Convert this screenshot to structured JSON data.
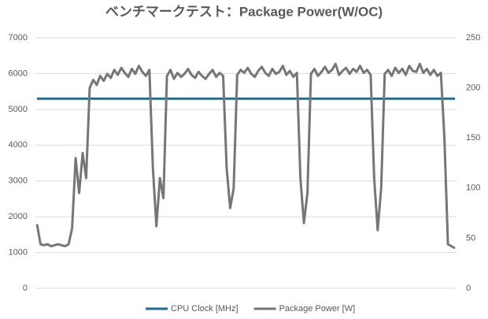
{
  "chart_data": {
    "type": "line",
    "title": "ベンチマークテスト：Package Power(W/OC)",
    "ylim": [
      0,
      7000
    ],
    "yticks": [
      0,
      1000,
      2000,
      3000,
      4000,
      5000,
      6000,
      7000
    ],
    "y2lim": [
      0,
      250
    ],
    "y2ticks": [
      0,
      50,
      100,
      150,
      200,
      250
    ],
    "grid": true,
    "legend": "bottom",
    "series": [
      {
        "name": "CPU Clock [MHz]",
        "color": "#1b6f8f",
        "values": [
          5300,
          5300,
          5300,
          5300,
          5300,
          5300,
          5300,
          5300,
          5300,
          5300,
          5300,
          5300,
          5300,
          5300,
          5300,
          5300,
          5300,
          5300,
          5300,
          5300,
          5300,
          5300,
          5300,
          5300,
          5300,
          5300,
          5300,
          5300,
          5300,
          5300,
          5300,
          5300,
          5300,
          5300,
          5300,
          5300,
          5300,
          5300,
          5300,
          5300,
          5300,
          5300,
          5300,
          5300,
          5300,
          5300,
          5300,
          5300,
          5300,
          5300,
          5300,
          5300,
          5300,
          5300,
          5300,
          5300,
          5300,
          5300,
          5300,
          5300,
          5300,
          5300,
          5300,
          5300,
          5300,
          5300,
          5300,
          5300,
          5300,
          5300,
          5300,
          5300,
          5300,
          5300,
          5300,
          5300,
          5300,
          5300,
          5300,
          5300,
          5300,
          5300,
          5300,
          5300,
          5300,
          5300,
          5300,
          5300,
          5300,
          5300,
          5300,
          5300,
          5300,
          5300,
          5300,
          5300,
          5300,
          5300,
          5300,
          5300,
          5300,
          5300,
          5300,
          5300,
          5300,
          5300,
          5300,
          5300,
          5300,
          5300,
          5300,
          5300,
          5300,
          5300,
          5300,
          5300,
          5300,
          5300,
          5300,
          5300
        ]
      },
      {
        "name": "Package Power [W]",
        "color": "#767676",
        "axis": "y2",
        "values": [
          64,
          44,
          43,
          44,
          42,
          43,
          44,
          43,
          42,
          44,
          60,
          130,
          95,
          135,
          110,
          200,
          208,
          203,
          212,
          207,
          214,
          210,
          218,
          213,
          220,
          215,
          211,
          219,
          214,
          222,
          216,
          212,
          218,
          120,
          62,
          110,
          90,
          212,
          218,
          209,
          215,
          211,
          214,
          219,
          213,
          210,
          216,
          212,
          209,
          214,
          218,
          211,
          215,
          212,
          120,
          80,
          100,
          213,
          218,
          215,
          220,
          214,
          211,
          217,
          221,
          215,
          212,
          219,
          214,
          216,
          222,
          213,
          217,
          211,
          215,
          110,
          65,
          95,
          214,
          219,
          212,
          216,
          221,
          215,
          218,
          224,
          213,
          217,
          220,
          214,
          219,
          216,
          222,
          215,
          218,
          213,
          110,
          58,
          100,
          214,
          218,
          212,
          220,
          215,
          219,
          213,
          222,
          217,
          216,
          224,
          215,
          219,
          213,
          218,
          212,
          215,
          150,
          44,
          42,
          40
        ]
      }
    ]
  }
}
